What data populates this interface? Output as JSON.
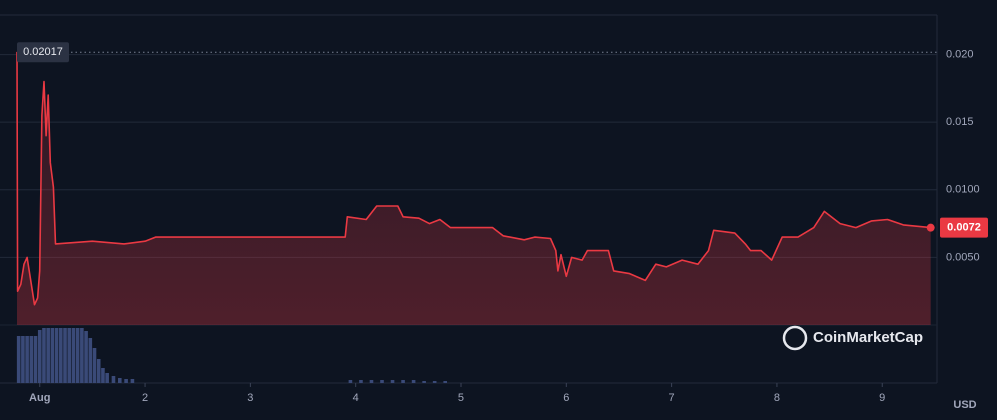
{
  "chart_data": {
    "type": "line",
    "color": "#ea3943",
    "currency": "USD",
    "watermark": "CoinMarketCap",
    "max": 0.02017,
    "last": 0.0072,
    "x": [
      0.784,
      0.79,
      0.82,
      0.85,
      0.88,
      0.91,
      0.95,
      0.98,
      1.0,
      1.02,
      1.04,
      1.06,
      1.08,
      1.1,
      1.13,
      1.15,
      1.5,
      1.8,
      2.0,
      2.1,
      3.9,
      3.92,
      4.1,
      4.2,
      4.4,
      4.45,
      4.6,
      4.7,
      4.8,
      4.9,
      5.3,
      5.4,
      5.6,
      5.7,
      5.85,
      5.9,
      5.92,
      5.95,
      6.0,
      6.05,
      6.15,
      6.2,
      6.4,
      6.45,
      6.6,
      6.75,
      6.85,
      6.95,
      7.1,
      7.25,
      7.35,
      7.4,
      7.6,
      7.7,
      7.75,
      7.85,
      7.95,
      8.05,
      8.2,
      8.35,
      8.45,
      8.6,
      8.75,
      8.9,
      9.05,
      9.2,
      9.46
    ],
    "values": [
      0.0202,
      0.0025,
      0.003,
      0.0045,
      0.005,
      0.0035,
      0.0015,
      0.002,
      0.004,
      0.0155,
      0.018,
      0.014,
      0.017,
      0.012,
      0.0102,
      0.006,
      0.0062,
      0.006,
      0.0062,
      0.0065,
      0.0065,
      0.008,
      0.0078,
      0.0088,
      0.0088,
      0.008,
      0.0079,
      0.0075,
      0.0078,
      0.0072,
      0.0072,
      0.0066,
      0.0063,
      0.0065,
      0.0064,
      0.0055,
      0.004,
      0.0052,
      0.0036,
      0.005,
      0.0048,
      0.0055,
      0.0055,
      0.004,
      0.0038,
      0.0033,
      0.0045,
      0.0043,
      0.0048,
      0.0045,
      0.0055,
      0.007,
      0.0068,
      0.006,
      0.0055,
      0.0055,
      0.0048,
      0.0065,
      0.0065,
      0.0072,
      0.0084,
      0.0075,
      0.0072,
      0.0077,
      0.0078,
      0.0074,
      0.0072
    ],
    "volume": {
      "x": [
        0.8,
        0.84,
        0.88,
        0.92,
        0.96,
        1.0,
        1.04,
        1.08,
        1.12,
        1.16,
        1.2,
        1.24,
        1.28,
        1.32,
        1.36,
        1.4,
        1.44,
        1.48,
        1.52,
        1.56,
        1.6,
        1.64,
        1.7,
        1.76,
        1.82,
        1.88,
        3.95,
        4.05,
        4.15,
        4.25,
        4.35,
        4.45,
        4.55,
        4.65,
        4.75,
        4.85
      ],
      "values": [
        47,
        47,
        47,
        47,
        47,
        53,
        55,
        55,
        55,
        55,
        55,
        55,
        55,
        55,
        55,
        55,
        52,
        45,
        35,
        24,
        15,
        10,
        7,
        5,
        4,
        4,
        3,
        3,
        3,
        3,
        3,
        3,
        3,
        2,
        2,
        2
      ],
      "color": "#3a4a78"
    },
    "xlim": [
      0.784,
      9.52
    ],
    "xticks": [
      {
        "value": 1,
        "label": "Aug"
      },
      2,
      3,
      4,
      5,
      6,
      7,
      8,
      9
    ],
    "ylim": [
      0,
      0.023
    ],
    "yticks": [
      {
        "value": 0.005,
        "label": "0.0050"
      },
      {
        "value": 0.01,
        "label": "0.0100"
      },
      {
        "value": 0.015,
        "label": "0.015"
      },
      {
        "value": 0.02,
        "label": "0.020"
      }
    ],
    "grid": true
  }
}
